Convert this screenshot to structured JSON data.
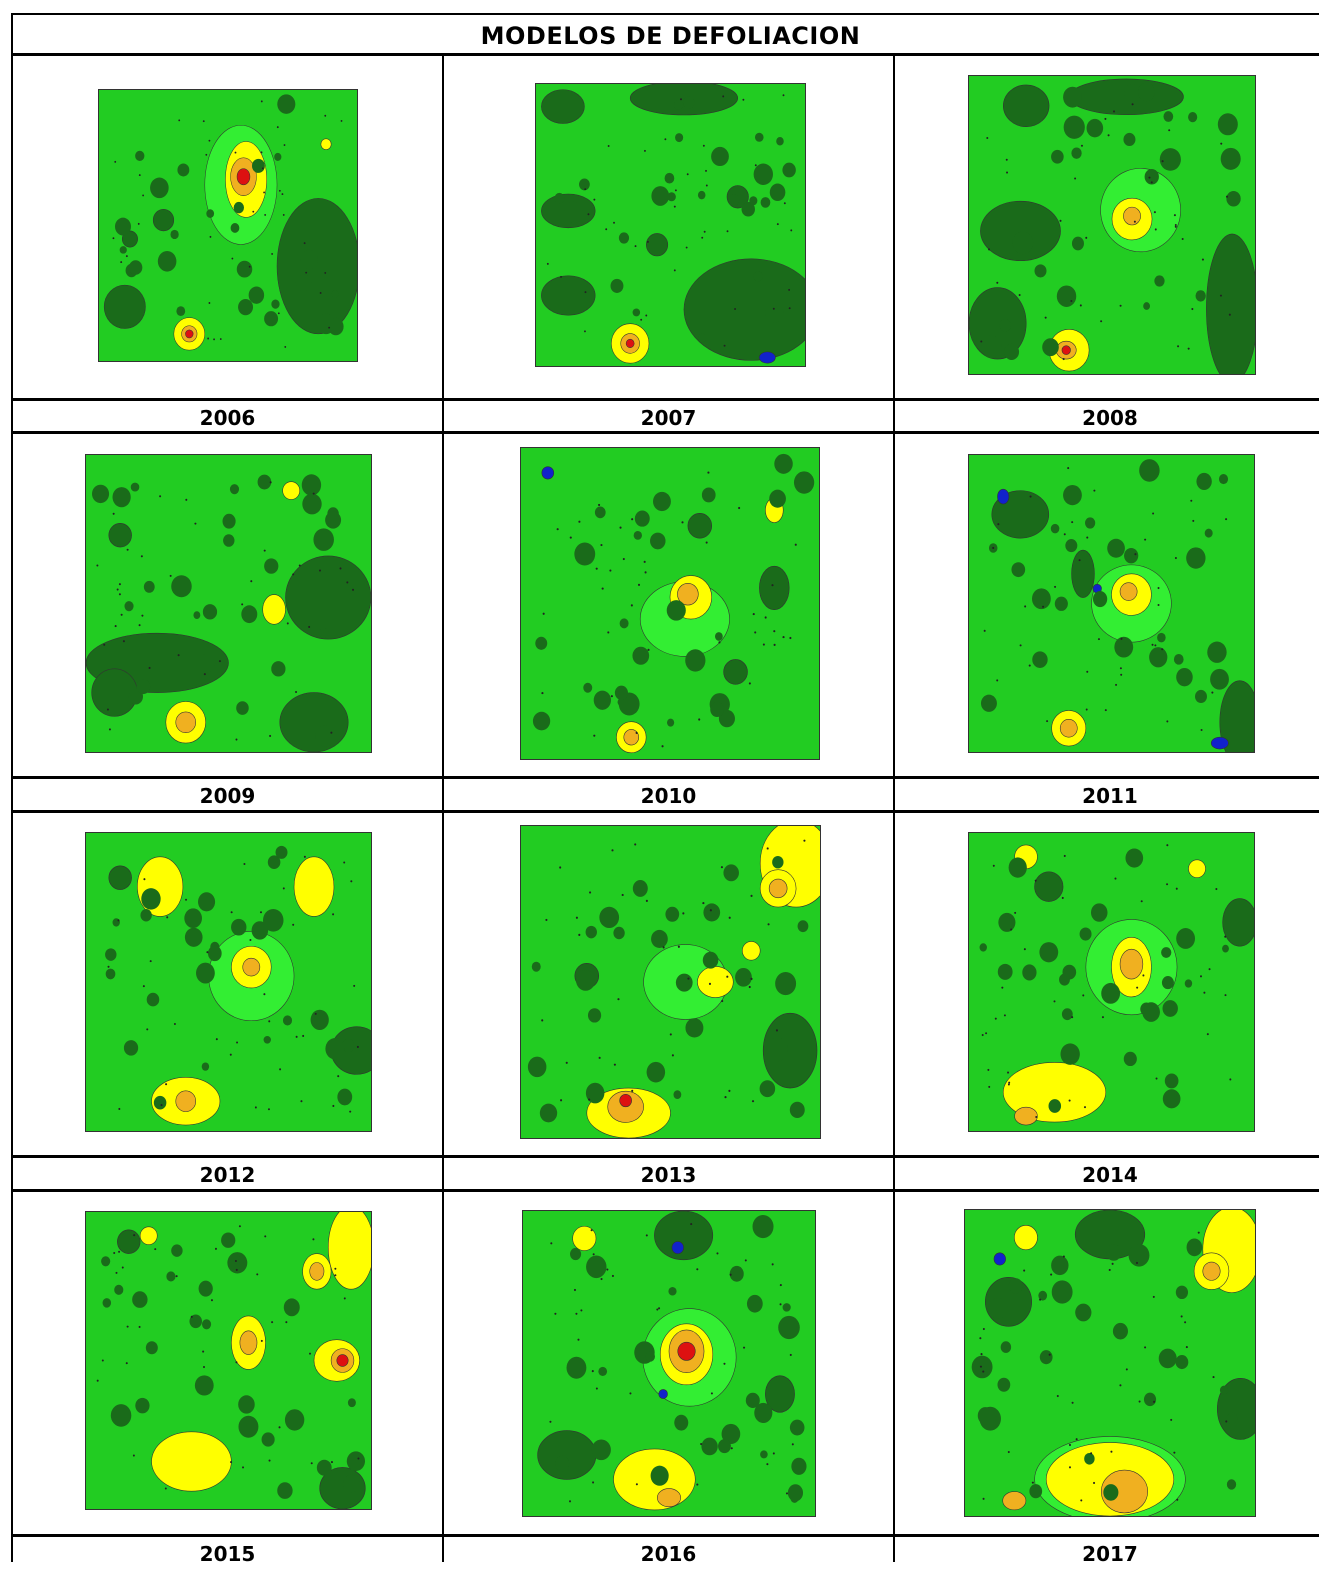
{
  "title": "MODELOS DE DEFOLIACION",
  "colors": {
    "base_green": "#22cc22",
    "light_green": "#33ee33",
    "dark_green": "#1a6b1a",
    "yellow": "#ffff00",
    "orange": "#f0b020",
    "dark_orange": "#e07020",
    "red": "#dd1111",
    "blue": "#1122cc"
  },
  "maps": [
    {
      "year": "2006",
      "icon": "contour-map-2006"
    },
    {
      "year": "2007",
      "icon": "contour-map-2007"
    },
    {
      "year": "2008",
      "icon": "contour-map-2008"
    },
    {
      "year": "2009",
      "icon": "contour-map-2009"
    },
    {
      "year": "2010",
      "icon": "contour-map-2010"
    },
    {
      "year": "2011",
      "icon": "contour-map-2011"
    },
    {
      "year": "2012",
      "icon": "contour-map-2012"
    },
    {
      "year": "2013",
      "icon": "contour-map-2013"
    },
    {
      "year": "2014",
      "icon": "contour-map-2014"
    },
    {
      "year": "2015",
      "icon": "contour-map-2015"
    },
    {
      "year": "2016",
      "icon": "contour-map-2016"
    },
    {
      "year": "2017",
      "icon": "contour-map-2017"
    }
  ]
}
